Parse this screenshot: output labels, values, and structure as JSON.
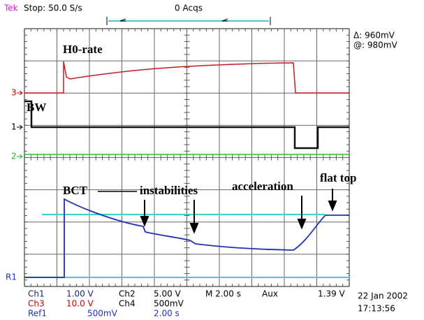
{
  "header": {
    "brand": "Tek",
    "status": "Stop: 50.0 S/s",
    "acqs": "0 Acqs"
  },
  "cursor": {
    "delta": "Δ: 960mV",
    "at": "@: 980mV"
  },
  "markers": {
    "ch3": "3",
    "ch1": "1",
    "ch2": "2",
    "ref1": "R1"
  },
  "annotations": {
    "h0_rate": "H0-rate",
    "bw": "BW",
    "bct": "BCT",
    "instabilities": "instabilities",
    "acceleration": "acceleration",
    "flat_top": "flat top"
  },
  "readout": {
    "row1": [
      "Ch1",
      "1.00 V",
      "Ch2",
      "5.00 V",
      "M 2.00 s",
      "Aux",
      "1.39 V"
    ],
    "row2": [
      "Ch3",
      "10.0 V",
      "Ch4",
      "500mV"
    ],
    "row3": [
      "Ref1",
      "500mV",
      "2.00 s"
    ],
    "date": "22 Jan 2002",
    "time": "17:13:56"
  }
}
